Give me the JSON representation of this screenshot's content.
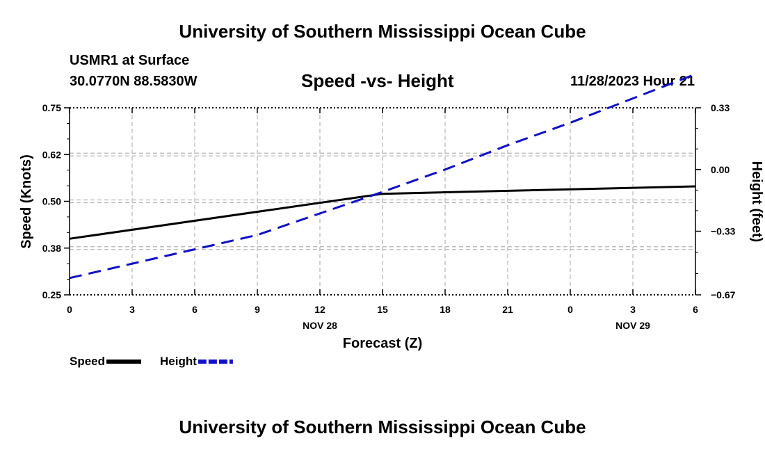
{
  "header": {
    "title_top": "University of Southern Mississippi Ocean Cube",
    "station": "USMR1 at Surface",
    "coords": "30.0770N  88.5830W",
    "subtitle": "Speed -vs- Height",
    "datetime": "11/28/2023 Hour 21",
    "title_bottom": "University of Southern Mississippi Ocean Cube"
  },
  "chart_data": {
    "type": "line",
    "title": "Speed -vs- Height",
    "xlabel": "Forecast (Z)",
    "ylabel": "Speed (Knots)",
    "y2label": "Height (feet)",
    "x_tick_labels": [
      "0",
      "3",
      "6",
      "9",
      "12",
      "15",
      "18",
      "21",
      "0",
      "3",
      "6"
    ],
    "x_date_labels": [
      {
        "tick_index": 4,
        "label": "NOV 28"
      },
      {
        "tick_index": 9,
        "label": "NOV 29"
      }
    ],
    "x_range_hours": [
      0,
      30
    ],
    "ylim": [
      0.25,
      0.75
    ],
    "y_ticks": [
      0.25,
      0.375,
      0.5,
      0.625,
      0.75
    ],
    "y_tick_labels": [
      "0.25",
      "0.38",
      "0.50",
      "0.62",
      "0.75"
    ],
    "y2lim": [
      -0.67,
      0.33
    ],
    "y2_ticks": [
      -0.67,
      -0.33,
      0.0,
      0.33
    ],
    "y2_tick_labels": [
      "−0.67",
      "−0.33",
      "0.00",
      "0.33"
    ],
    "grid": true,
    "legend_position": "bottom-left",
    "series": [
      {
        "name": "Speed",
        "axis": "left",
        "color": "#000000",
        "dash": "solid",
        "x": [
          0,
          15,
          30
        ],
        "values": [
          0.4,
          0.52,
          0.54
        ]
      },
      {
        "name": "Height",
        "axis": "right",
        "color": "#1010c8",
        "dash": "dashed",
        "x": [
          0,
          9,
          15,
          18,
          21,
          24,
          30
        ],
        "values": [
          -0.58,
          -0.35,
          -0.12,
          0.0,
          0.13,
          0.25,
          0.51
        ]
      }
    ]
  }
}
